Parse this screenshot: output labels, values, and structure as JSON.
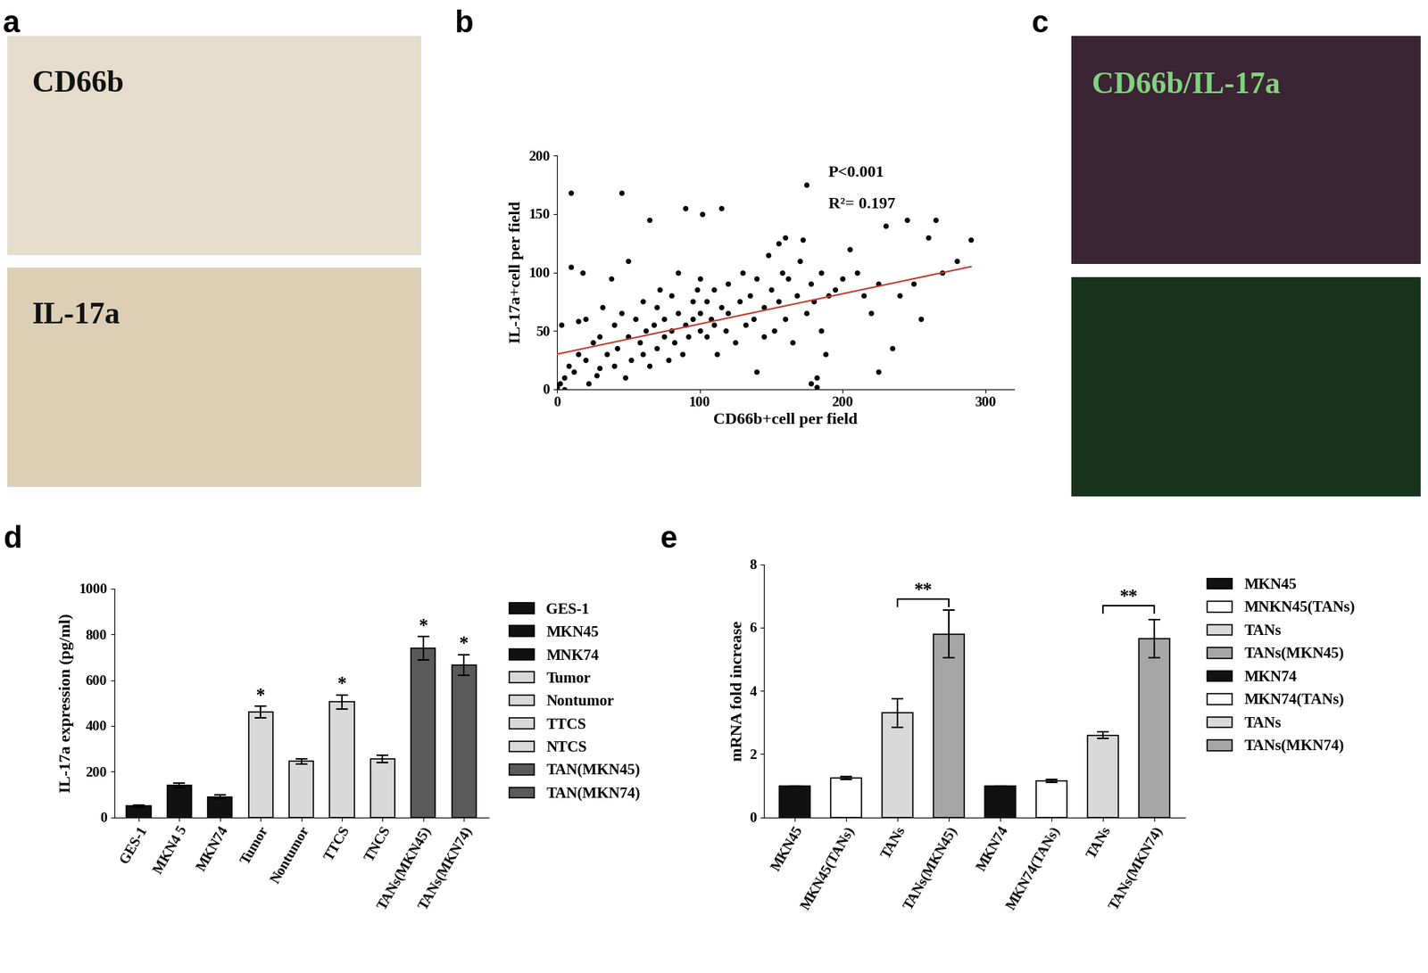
{
  "chart_data": [
    {
      "type": "image",
      "panel": "a",
      "label": "CD66b",
      "color": "#e6dccb"
    },
    {
      "type": "image",
      "label": "IL-17a",
      "color": "#dccfb5"
    },
    {
      "type": "scatter",
      "panel": "b",
      "x": [
        0,
        2,
        3,
        5,
        5,
        8,
        10,
        10,
        12,
        15,
        15,
        18,
        20,
        20,
        22,
        25,
        28,
        30,
        30,
        32,
        35,
        38,
        40,
        40,
        42,
        45,
        45,
        48,
        50,
        50,
        52,
        55,
        58,
        60,
        60,
        62,
        65,
        65,
        68,
        70,
        70,
        72,
        75,
        75,
        78,
        80,
        80,
        82,
        85,
        85,
        88,
        90,
        90,
        92,
        95,
        95,
        98,
        100,
        100,
        100,
        102,
        105,
        105,
        108,
        110,
        110,
        112,
        115,
        115,
        118,
        120,
        120,
        125,
        128,
        130,
        132,
        135,
        138,
        140,
        140,
        145,
        145,
        148,
        150,
        152,
        155,
        155,
        158,
        160,
        160,
        162,
        165,
        168,
        170,
        172,
        175,
        175,
        178,
        180,
        182,
        185,
        185,
        188,
        190,
        195,
        200,
        205,
        210,
        215,
        220,
        225,
        225,
        230,
        235,
        240,
        245,
        250,
        255,
        260,
        265,
        270,
        280,
        290,
        178,
        182
      ],
      "values": [
        2,
        5,
        55,
        10,
        0,
        20,
        168,
        105,
        15,
        58,
        30,
        100,
        25,
        60,
        5,
        40,
        12,
        18,
        45,
        70,
        30,
        95,
        20,
        55,
        35,
        168,
        65,
        10,
        45,
        110,
        25,
        60,
        40,
        30,
        75,
        50,
        145,
        20,
        55,
        35,
        70,
        85,
        45,
        60,
        25,
        50,
        80,
        40,
        65,
        100,
        30,
        55,
        155,
        45,
        75,
        60,
        85,
        50,
        95,
        65,
        150,
        45,
        75,
        60,
        55,
        85,
        30,
        70,
        155,
        50,
        65,
        90,
        40,
        75,
        100,
        55,
        80,
        60,
        15,
        95,
        70,
        45,
        115,
        85,
        50,
        75,
        125,
        100,
        60,
        130,
        95,
        40,
        80,
        110,
        128,
        175,
        65,
        90,
        75,
        10,
        50,
        100,
        30,
        80,
        85,
        95,
        120,
        100,
        80,
        65,
        15,
        90,
        140,
        35,
        80,
        145,
        90,
        60,
        130,
        145,
        100,
        110,
        128,
        5,
        2
      ],
      "color": "#000000",
      "fit": {
        "x": [
          0,
          290
        ],
        "values": [
          30,
          105
        ],
        "color": "#c0392b"
      },
      "annotations": [
        {
          "text": "P<0.001",
          "x": 190,
          "y": 185
        },
        {
          "text": "R²= 0.197",
          "x": 190,
          "y": 158
        }
      ],
      "xlabel": "CD66b+cell per field",
      "ylabel": "IL-17a+cell per field",
      "xlim": [
        0,
        320
      ],
      "ylim": [
        0,
        200
      ],
      "xticks": [
        0,
        100,
        200,
        300
      ],
      "yticks": [
        0,
        50,
        100,
        150,
        200
      ]
    },
    {
      "type": "image",
      "panel": "c",
      "label": "CD66b/IL-17a",
      "color": "#3b2433"
    },
    {
      "type": "image",
      "color": "#18331c"
    },
    {
      "type": "bar",
      "panel": "d",
      "categories": [
        "GES-1",
        "MKN4 5",
        "MKN74",
        "Tumor",
        "Nontumor",
        "TTCS",
        "TNCS",
        "TANs(MKN45)",
        "TANs(MKN74)"
      ],
      "series": [
        {
          "name": "GES-1",
          "color": "#111111",
          "values": [
            50,
            null,
            null,
            null,
            null,
            null,
            null,
            null,
            null
          ],
          "errors": [
            5,
            null,
            null,
            null,
            null,
            null,
            null,
            null,
            null
          ]
        },
        {
          "name": "MKN45",
          "color": "#111111",
          "values": [
            null,
            140,
            null,
            null,
            null,
            null,
            null,
            null,
            null
          ],
          "errors": [
            null,
            10,
            null,
            null,
            null,
            null,
            null,
            null,
            null
          ]
        },
        {
          "name": "MNK74",
          "color": "#111111",
          "values": [
            null,
            null,
            90,
            null,
            null,
            null,
            null,
            null,
            null
          ],
          "errors": [
            null,
            null,
            8,
            null,
            null,
            null,
            null,
            null,
            null
          ]
        },
        {
          "name": "Tumor",
          "color": "#d9d9d9",
          "values": [
            null,
            null,
            null,
            460,
            null,
            null,
            null,
            null,
            null
          ],
          "errors": [
            null,
            null,
            null,
            25,
            null,
            null,
            null,
            null,
            null
          ]
        },
        {
          "name": "Nontumor",
          "color": "#d9d9d9",
          "values": [
            null,
            null,
            null,
            null,
            245,
            null,
            null,
            null,
            null
          ],
          "errors": [
            null,
            null,
            null,
            null,
            12,
            null,
            null,
            null,
            null
          ]
        },
        {
          "name": "TTCS",
          "color": "#d9d9d9",
          "values": [
            null,
            null,
            null,
            null,
            null,
            505,
            null,
            null,
            null
          ],
          "errors": [
            null,
            null,
            null,
            null,
            null,
            30,
            null,
            null,
            null
          ]
        },
        {
          "name": "NTCS",
          "color": "#d9d9d9",
          "values": [
            null,
            null,
            null,
            null,
            null,
            null,
            255,
            null,
            null
          ],
          "errors": [
            null,
            null,
            null,
            null,
            null,
            null,
            15,
            null,
            null
          ]
        },
        {
          "name": "TAN(MKN45)",
          "color": "#5a5a5a",
          "values": [
            null,
            null,
            null,
            null,
            null,
            null,
            null,
            740,
            null
          ],
          "errors": [
            null,
            null,
            null,
            null,
            null,
            null,
            null,
            50,
            null
          ]
        },
        {
          "name": "TAN(MKN74)",
          "color": "#5a5a5a",
          "values": [
            null,
            null,
            null,
            null,
            null,
            null,
            null,
            null,
            665
          ],
          "errors": [
            null,
            null,
            null,
            null,
            null,
            null,
            null,
            null,
            45
          ]
        }
      ],
      "annotations": [
        {
          "text": "*",
          "index": 3
        },
        {
          "text": "*",
          "index": 5
        },
        {
          "text": "*",
          "index": 7
        },
        {
          "text": "*",
          "index": 8
        }
      ],
      "ylabel": "IL-17a expression (pg/ml)",
      "ylim": [
        0,
        1000
      ],
      "yticks": [
        0,
        200,
        400,
        600,
        800,
        1000
      ],
      "legend": "upper left"
    },
    {
      "type": "bar",
      "panel": "e",
      "categories": [
        "MKN45",
        "MKN45(TANs)",
        "TANs",
        "TANs(MKN45)",
        "MKN74",
        "MKN74(TANs)",
        "TANs",
        "TANs(MKN74)"
      ],
      "series": [
        {
          "name": "MKN45",
          "color": "#111111",
          "values": [
            1.0,
            null,
            null,
            null,
            null,
            null,
            null,
            null
          ],
          "errors": [
            0.0,
            null,
            null,
            null,
            null,
            null,
            null,
            null
          ]
        },
        {
          "name": "MNKN45(TANs)",
          "color": "#ffffff",
          "values": [
            null,
            1.25,
            null,
            null,
            null,
            null,
            null,
            null
          ],
          "errors": [
            null,
            0.05,
            null,
            null,
            null,
            null,
            null,
            null
          ]
        },
        {
          "name": "TANs",
          "color": "#d9d9d9",
          "values": [
            null,
            null,
            3.3,
            null,
            null,
            null,
            null,
            null
          ],
          "errors": [
            null,
            null,
            0.45,
            null,
            null,
            null,
            null,
            null
          ]
        },
        {
          "name": "TANs(MKN45)",
          "color": "#a6a6a6",
          "values": [
            null,
            null,
            null,
            5.8,
            null,
            null,
            null,
            null
          ],
          "errors": [
            null,
            null,
            null,
            0.75,
            null,
            null,
            null,
            null
          ]
        },
        {
          "name": "MKN74",
          "color": "#111111",
          "values": [
            null,
            null,
            null,
            null,
            1.0,
            null,
            null,
            null
          ],
          "errors": [
            null,
            null,
            null,
            null,
            0.0,
            null,
            null,
            null
          ]
        },
        {
          "name": "MKN74(TANs)",
          "color": "#ffffff",
          "values": [
            null,
            null,
            null,
            null,
            null,
            1.15,
            null,
            null
          ],
          "errors": [
            null,
            null,
            null,
            null,
            null,
            0.05,
            null,
            null
          ]
        },
        {
          "name": "TANs",
          "color": "#d9d9d9",
          "values": [
            null,
            null,
            null,
            null,
            null,
            null,
            2.6,
            null
          ],
          "errors": [
            null,
            null,
            null,
            null,
            null,
            null,
            0.1,
            null
          ]
        },
        {
          "name": "TANs(MKN74)",
          "color": "#a6a6a6",
          "values": [
            null,
            null,
            null,
            null,
            null,
            null,
            null,
            5.65
          ],
          "errors": [
            null,
            null,
            null,
            null,
            null,
            null,
            null,
            0.6
          ]
        }
      ],
      "annotations": [
        {
          "text": "**",
          "between": [
            2,
            3
          ],
          "y": 6.9
        },
        {
          "text": "**",
          "between": [
            6,
            7
          ],
          "y": 6.7
        }
      ],
      "ylabel": "mRNA fold increase",
      "ylim": [
        0,
        8
      ],
      "yticks": [
        0,
        2,
        4,
        6,
        8
      ],
      "legend": "upper left"
    }
  ]
}
